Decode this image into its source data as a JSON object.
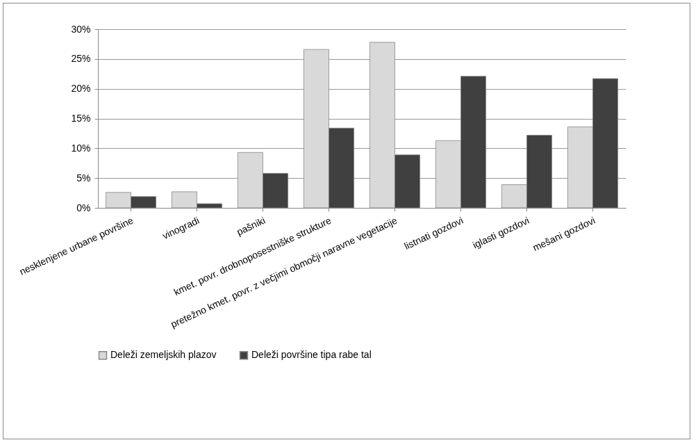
{
  "chart_data": {
    "type": "bar",
    "categories": [
      "nesklenjene urbane površine",
      "vinogradi",
      "pašniki",
      "kmet. povr. drobnoposestniške strukture",
      "pretežno kmet. povr. z večjimi območji naravne vegetacije",
      "listnati gozdovi",
      "iglasti gozdovi",
      "mešani gozdovi"
    ],
    "series": [
      {
        "name": "Deleži zemeljskih plazov",
        "color": "#d9d9d9",
        "values": [
          2.6,
          2.7,
          9.3,
          26.6,
          27.8,
          11.3,
          3.9,
          13.6
        ]
      },
      {
        "name": "Deleži površine tipa rabe tal",
        "color": "#404040",
        "values": [
          1.9,
          0.7,
          5.8,
          13.4,
          8.9,
          22.1,
          12.2,
          21.7
        ]
      }
    ],
    "ylim": [
      0,
      30
    ],
    "yticks": [
      {
        "value": 0,
        "label": "0%"
      },
      {
        "value": 5,
        "label": "5%"
      },
      {
        "value": 10,
        "label": "10%"
      },
      {
        "value": 15,
        "label": "15%"
      },
      {
        "value": 20,
        "label": "20%"
      },
      {
        "value": 25,
        "label": "25%"
      },
      {
        "value": 30,
        "label": "30%"
      }
    ],
    "grid": "y",
    "legend": "bottom"
  }
}
